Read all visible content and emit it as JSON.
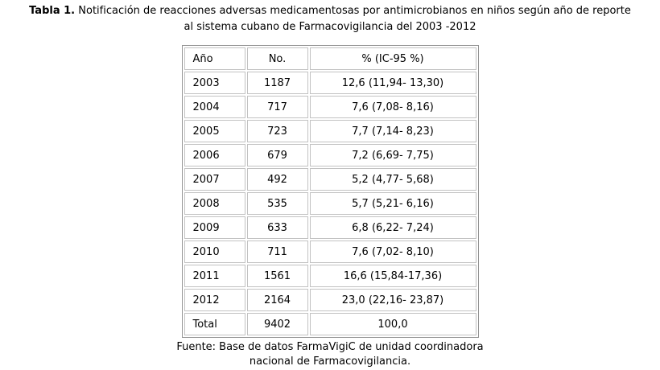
{
  "caption": {
    "label": "Tabla 1.",
    "line1_rest": "Notificación de reacciones adversas medicamentosas por antimicrobianos en niños según año de reporte",
    "line2": "al sistema cubano de Farmacovigilancia del 2003 -2012"
  },
  "source_note": {
    "line1": "Fuente: Base de datos FarmaVigiC de unidad coordinadora",
    "line2": "nacional de Farmacovigilancia."
  },
  "chart_data": {
    "type": "table",
    "title": "Tabla 1. Notificación de reacciones adversas medicamentosas por antimicrobianos en niños según año de reporte al sistema cubano de Farmacovigilancia del 2003 -2012",
    "columns": [
      "Año",
      "No.",
      "% (IC-95 %)"
    ],
    "rows": [
      [
        "2003",
        "1187",
        "12,6 (11,94- 13,30)"
      ],
      [
        "2004",
        "717",
        "7,6 (7,08- 8,16)"
      ],
      [
        "2005",
        "723",
        "7,7 (7,14- 8,23)"
      ],
      [
        "2006",
        "679",
        "7,2 (6,69- 7,75)"
      ],
      [
        "2007",
        "492",
        "5,2 (4,77- 5,68)"
      ],
      [
        "2008",
        "535",
        "5,7 (5,21- 6,16)"
      ],
      [
        "2009",
        "633",
        "6,8 (6,22- 7,24)"
      ],
      [
        "2010",
        "711",
        "7,6 (7,02- 8,10)"
      ],
      [
        "2011",
        "1561",
        "16,6 (15,84-17,36)"
      ],
      [
        "2012",
        "2164",
        "23,0 (22,16- 23,87)"
      ],
      [
        "Total",
        "9402",
        "100,0"
      ]
    ],
    "source": "Fuente: Base de datos FarmaVigiC de unidad coordinadora nacional de Farmacovigilancia."
  },
  "colors": {
    "table_outer_border": "#949494",
    "cell_border": "#c2c2c2",
    "text": "#000000",
    "background": "#ffffff"
  }
}
